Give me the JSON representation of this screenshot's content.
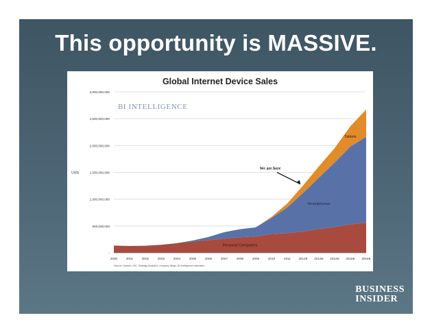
{
  "slide": {
    "title": "This opportunity is MASSIVE.",
    "brand_line1": "BUSINESS",
    "brand_line2": "INSIDER"
  },
  "chart_data": {
    "type": "area",
    "stacked": true,
    "title": "Global Internet Device Sales",
    "watermark": "BI INTELLIGENCE",
    "ylabel": "Units",
    "xlabel": "",
    "ylim": [
      0,
      3000000000
    ],
    "yticks": [
      "3,000,000,000",
      "2,500,000,000",
      "2,000,000,000",
      "1,500,000,000",
      "1,000,000,000",
      "500,000,000",
      "-"
    ],
    "ytick_values": [
      3000000000,
      2500000000,
      2000000000,
      1500000000,
      1000000000,
      500000000,
      0
    ],
    "categories": [
      "2000",
      "2001",
      "2002",
      "2003",
      "2004",
      "2005",
      "2006",
      "2007",
      "2008",
      "2009",
      "2010",
      "2011",
      "2012E",
      "2013E",
      "2014E",
      "2015E",
      "2016E"
    ],
    "series": [
      {
        "name": "Personal Computers",
        "color": "#a94a3e",
        "values": [
          135000000,
          128000000,
          132000000,
          150000000,
          180000000,
          210000000,
          235000000,
          265000000,
          290000000,
          305000000,
          350000000,
          365000000,
          395000000,
          440000000,
          480000000,
          530000000,
          560000000
        ]
      },
      {
        "name": "Smartphones",
        "color": "#5872a8",
        "values": [
          0,
          0,
          0,
          0,
          0,
          20000000,
          60000000,
          120000000,
          150000000,
          170000000,
          300000000,
          480000000,
          720000000,
          960000000,
          1200000000,
          1450000000,
          1600000000
        ]
      },
      {
        "name": "Tablets",
        "color": "#e28b2a",
        "values": [
          0,
          0,
          0,
          0,
          0,
          0,
          0,
          0,
          0,
          0,
          20000000,
          75000000,
          140000000,
          210000000,
          270000000,
          380000000,
          510000000
        ]
      }
    ],
    "annotation": "We are here",
    "source": "Source: Gartner, IDC, Strategy Analytics, company filings, BI Intelligence estimates",
    "grid": true,
    "legend": "labels-on-areas"
  }
}
